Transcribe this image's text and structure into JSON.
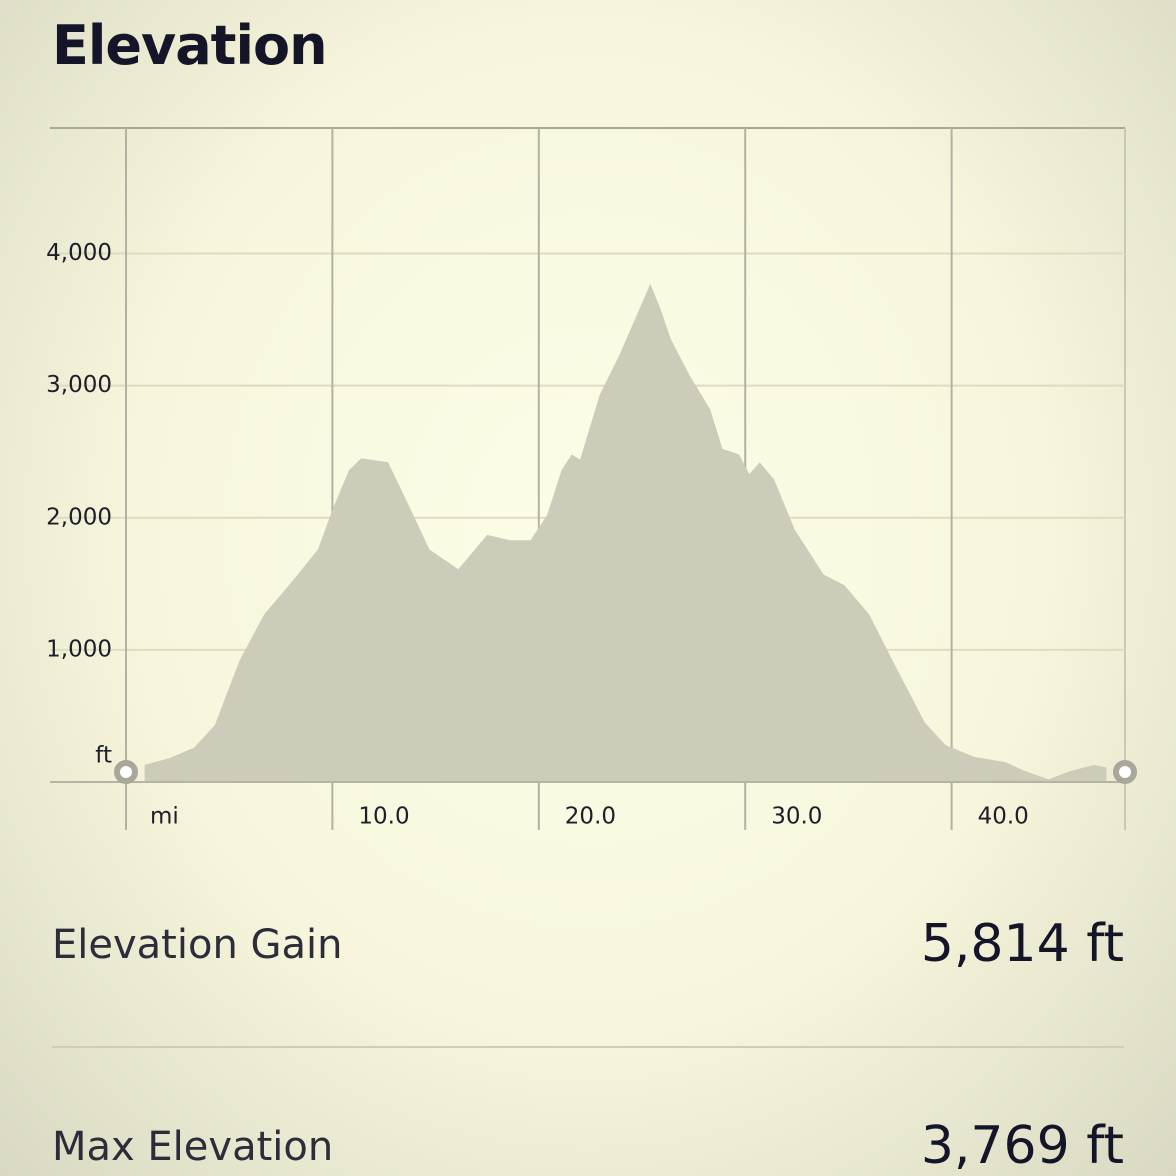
{
  "chart_data": {
    "type": "area",
    "title": "Elevation",
    "x_unit": "mi",
    "y_unit": "ft",
    "color": "#cdcbb9",
    "x": [
      0.9,
      2.1,
      3.3,
      4.3,
      5.5,
      6.7,
      7.9,
      9.3,
      10.0,
      10.8,
      11.4,
      12.7,
      13.8,
      14.7,
      16.1,
      17.5,
      18.6,
      19.6,
      20.4,
      21.1,
      21.6,
      22.0,
      22.95,
      23.9,
      25.4,
      25.9,
      26.4,
      27.3,
      28.3,
      28.9,
      29.7,
      30.2,
      30.7,
      31.4,
      32.4,
      33.8,
      34.8,
      36.0,
      37.5,
      38.7,
      39.7,
      41.1,
      42.6,
      43.6,
      44.7,
      45.7,
      46.9,
      47.5
    ],
    "values": [
      130,
      180,
      260,
      430,
      920,
      1270,
      1490,
      1760,
      2060,
      2360,
      2450,
      2420,
      2060,
      1760,
      1610,
      1870,
      1830,
      1830,
      2020,
      2360,
      2480,
      2440,
      2930,
      3230,
      3769,
      3580,
      3350,
      3080,
      2820,
      2520,
      2480,
      2330,
      2420,
      2290,
      1910,
      1570,
      1490,
      1270,
      810,
      450,
      280,
      190,
      150,
      80,
      20,
      80,
      130,
      110
    ],
    "xlim": [
      0,
      48.4
    ],
    "ylim": [
      0,
      4950
    ],
    "xticks": [
      0,
      {
        "value": 10,
        "label": "10.0"
      },
      {
        "value": 20,
        "label": "20.0"
      },
      {
        "value": 30,
        "label": "30.0"
      },
      {
        "value": 40,
        "label": "40.0"
      }
    ],
    "yticks": [
      {
        "value": 1000,
        "label": "1,000"
      },
      {
        "value": 2000,
        "label": "2,000"
      },
      {
        "value": 3000,
        "label": "3,000"
      },
      {
        "value": 4000,
        "label": "4,000"
      }
    ],
    "grid": true
  },
  "stats": [
    {
      "label": "Elevation Gain",
      "value": "5,814 ft"
    },
    {
      "label": "Max Elevation",
      "value": "3,769 ft"
    }
  ]
}
